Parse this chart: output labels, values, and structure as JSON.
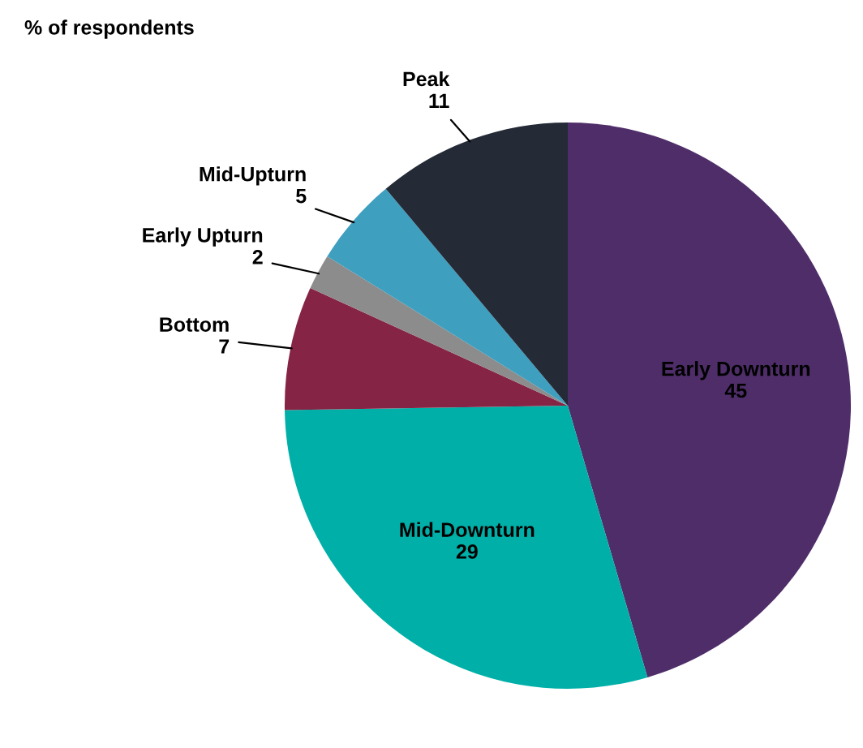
{
  "chart_data": {
    "type": "pie",
    "title": "% of respondents",
    "categories": [
      "Early Downturn",
      "Mid-Downturn",
      "Bottom",
      "Early Upturn",
      "Mid-Upturn",
      "Peak"
    ],
    "values": [
      45,
      29,
      7,
      2,
      5,
      11
    ],
    "colors": [
      "#4e2d69",
      "#00b0a8",
      "#862445",
      "#8c8c8c",
      "#3f9fbf",
      "#242a36"
    ],
    "data_labels": true
  }
}
